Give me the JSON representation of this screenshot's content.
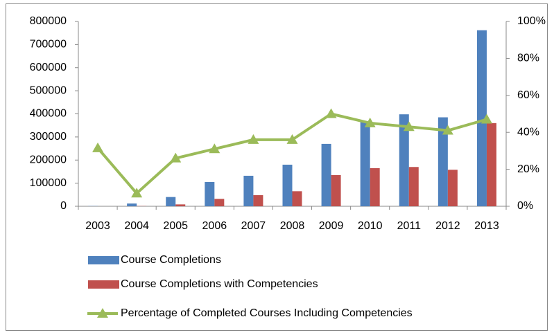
{
  "chart_data": {
    "type": "bar",
    "categories": [
      "2003",
      "2004",
      "2005",
      "2006",
      "2007",
      "2008",
      "2009",
      "2010",
      "2011",
      "2012",
      "2013"
    ],
    "series": [
      {
        "name": "Course Completions",
        "color": "#4f81bd",
        "values": [
          1000,
          12000,
          40000,
          105000,
          132000,
          180000,
          270000,
          368000,
          398000,
          385000,
          762000
        ]
      },
      {
        "name": "Course Completions with Competencies",
        "color": "#c0504d",
        "values": [
          0,
          1000,
          8000,
          32000,
          48000,
          65000,
          135000,
          165000,
          170000,
          158000,
          360000
        ]
      },
      {
        "name": "Percentage of Completed Courses Including Competencies",
        "color": "#9bbb59",
        "type": "line",
        "axis": "y2",
        "values": [
          31.5,
          7,
          26,
          31,
          36,
          36,
          50,
          45,
          43,
          41,
          47
        ]
      }
    ],
    "ylim": [
      0,
      800000
    ],
    "yticks": [
      0,
      100000,
      200000,
      300000,
      400000,
      500000,
      600000,
      700000,
      800000
    ],
    "y2lim": [
      0,
      100
    ],
    "y2ticks": [
      {
        "value": 0,
        "label": "0%"
      },
      {
        "value": 20,
        "label": "20%"
      },
      {
        "value": 40,
        "label": "40%"
      },
      {
        "value": 60,
        "label": "60%"
      },
      {
        "value": 80,
        "label": "80%"
      },
      {
        "value": 100,
        "label": "100%"
      }
    ],
    "grid": false,
    "legend": "bottom"
  }
}
